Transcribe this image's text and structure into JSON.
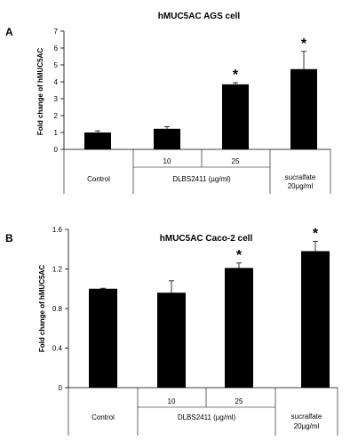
{
  "chart_data": [
    {
      "type": "bar",
      "panel_label": "A",
      "title": "hMUC5AC AGS cell",
      "ylabel": "Fold change of hMUC5AC",
      "ylim": [
        0,
        7
      ],
      "yticks": [
        "0",
        "1",
        "2",
        "3",
        "4",
        "5",
        "6",
        "7"
      ],
      "categories": [
        "Control",
        "10",
        "25",
        "sucralfate 20µg/ml"
      ],
      "group_label": "DLBS2411 (µg/ml)",
      "values": [
        1.0,
        1.22,
        3.85,
        4.75
      ],
      "errors": [
        0.1,
        0.12,
        0.1,
        1.05
      ],
      "significance": [
        "",
        "",
        "*",
        "*"
      ]
    },
    {
      "type": "bar",
      "panel_label": "B",
      "title": "hMUC5AC Caco-2 cell",
      "ylabel": "Fold change of hMUC5AC",
      "ylim": [
        0,
        1.6
      ],
      "yticks": [
        "0",
        "0.4",
        "0.8",
        "1.2",
        "1.6"
      ],
      "categories": [
        "Control",
        "10",
        "25",
        "sucralfate 20µg/ml"
      ],
      "group_label": "DLBS2411 (µg/ml)",
      "values": [
        1.0,
        0.96,
        1.21,
        1.38
      ],
      "errors": [
        0.005,
        0.12,
        0.05,
        0.1
      ],
      "significance": [
        "",
        "",
        "*",
        "*"
      ]
    }
  ]
}
